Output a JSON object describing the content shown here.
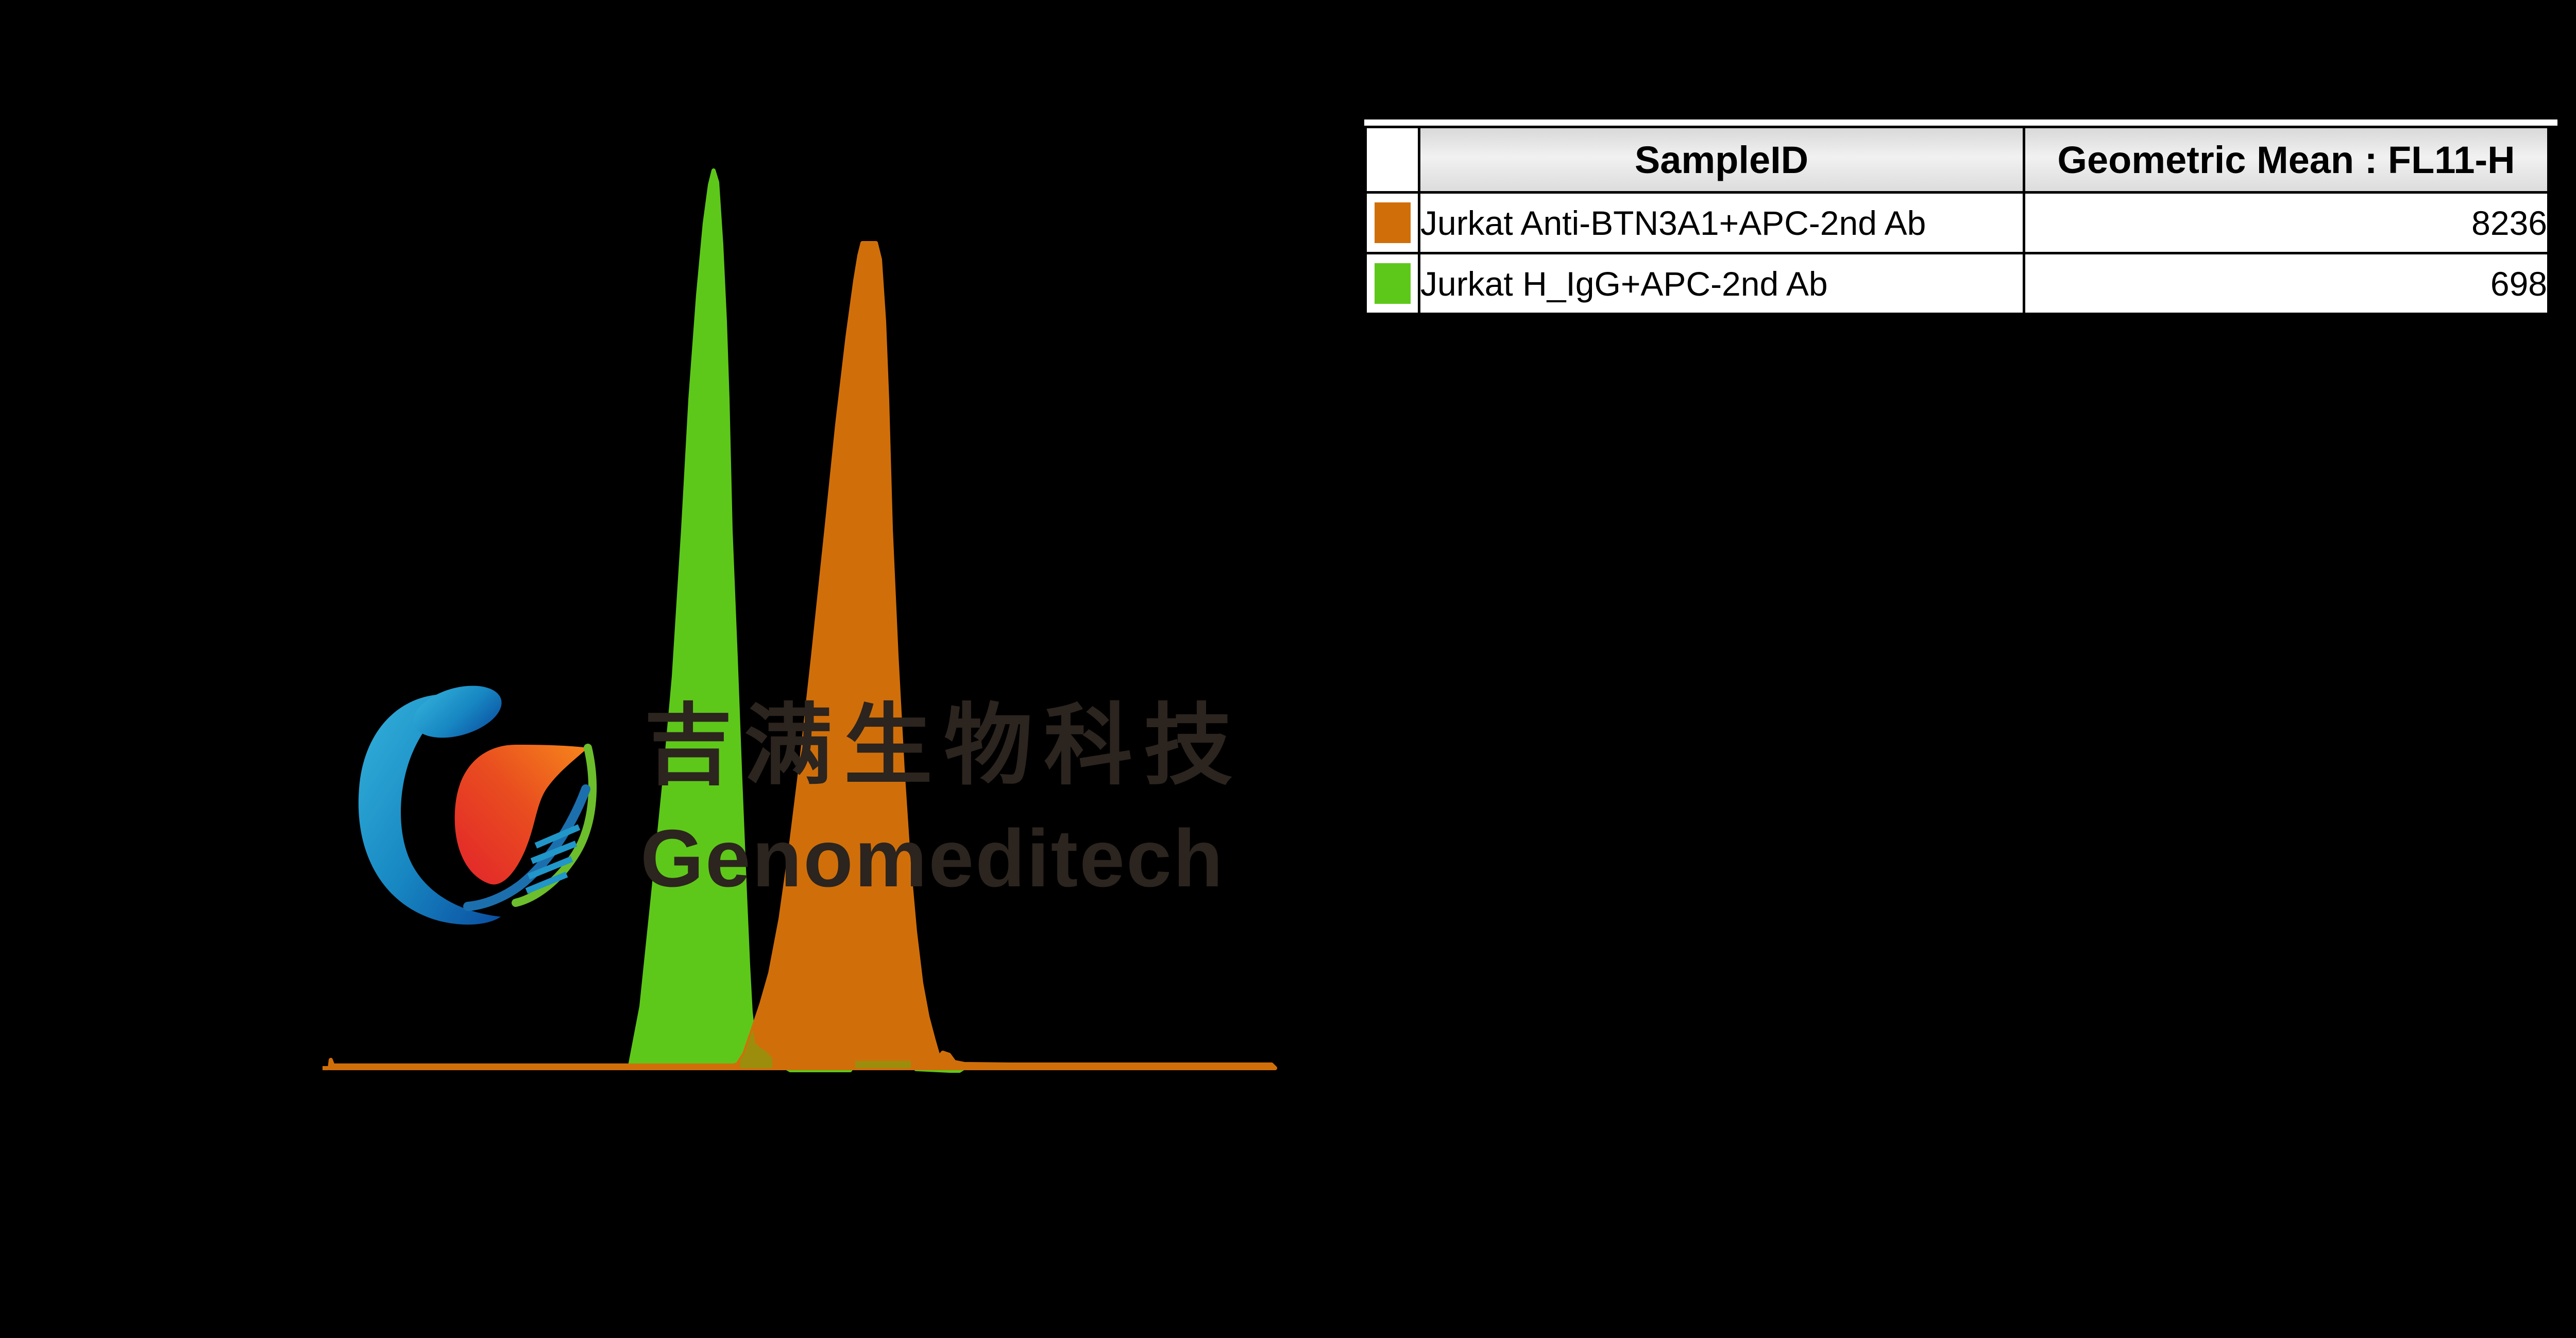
{
  "watermark": {
    "cjk_text": "吉满生物科技",
    "brand_text": "Genomeditech",
    "text_color": "#2C241E"
  },
  "legend_table": {
    "headers": {
      "swatch": "",
      "sample_id": "SampleID",
      "metric": "Geometric Mean : FL11-H"
    },
    "rows": [
      {
        "swatch_color": "#D06F0A",
        "sample_id": "Jurkat Anti-BTN3A1+APC-2nd Ab",
        "value": "8236"
      },
      {
        "swatch_color": "#5EC81A",
        "sample_id": "Jurkat H_IgG+APC-2nd Ab",
        "value": "698"
      }
    ]
  },
  "chart_data": {
    "type": "area",
    "subtype": "flow-cytometry-histogram-overlay",
    "title": "",
    "xlabel": "",
    "ylabel": "",
    "x_channel": "FL11-H",
    "axes_visible": false,
    "grid": false,
    "background_color": "#000000",
    "baseline_color": "#D06F0A",
    "overlap_color": "#9C8E0C",
    "legend_position": "top-right-table",
    "series": [
      {
        "name": "Jurkat H_IgG+APC-2nd Ab",
        "color": "#5EC81A",
        "geometric_mean_fl11h": 698,
        "points": [
          [
            0.3172,
            0
          ],
          [
            0.3297,
            0.0688
          ],
          [
            0.3422,
            0.1951
          ],
          [
            0.3542,
            0.3213
          ],
          [
            0.364,
            0.436
          ],
          [
            0.3738,
            0.5995
          ],
          [
            0.3815,
            0.7458
          ],
          [
            0.3896,
            0.8606
          ],
          [
            0.3967,
            0.9409
          ],
          [
            0.4022,
            0.9839
          ],
          [
            0.406,
            1.0
          ],
          [
            0.4098,
            0.9868
          ],
          [
            0.4141,
            0.918
          ],
          [
            0.418,
            0.8319
          ],
          [
            0.4207,
            0.7458
          ],
          [
            0.424,
            0.5995
          ],
          [
            0.4294,
            0.459
          ],
          [
            0.4343,
            0.3213
          ],
          [
            0.4392,
            0.1951
          ],
          [
            0.4425,
            0.1147
          ],
          [
            0.4452,
            0.0631
          ],
          [
            0.4474,
            0.0419
          ],
          [
            0.4501,
            0.0275
          ],
          [
            0.4556,
            0.0229
          ],
          [
            0.4616,
            0.0184
          ],
          [
            0.4681,
            0.0115
          ],
          [
            0.4741,
            0.0057
          ],
          [
            0.4796,
            0.0023
          ],
          [
            0.4872,
            -0.0023
          ],
          [
            0.5504,
            -0.0023
          ],
          [
            0.5559,
            0.008
          ],
          [
            0.6147,
            0.008
          ],
          [
            0.6202,
            -0.0011
          ],
          [
            0.6567,
            -0.0029
          ],
          [
            0.666,
            -0.0029
          ],
          [
            0.6703,
            0
          ]
        ]
      },
      {
        "name": "Jurkat Anti-BTN3A1+APC-2nd Ab",
        "color": "#D06F0A",
        "geometric_mean_fl11h": 8236,
        "points": [
          [
            0.0,
            0
          ],
          [
            0.0011,
            0.0092
          ],
          [
            0.0033,
            0.0029
          ],
          [
            0.4278,
            0.0029
          ],
          [
            0.4316,
            0.0046
          ],
          [
            0.4387,
            0.0161
          ],
          [
            0.4469,
            0.0413
          ],
          [
            0.4567,
            0.0717
          ],
          [
            0.466,
            0.1061
          ],
          [
            0.4769,
            0.1664
          ],
          [
            0.4877,
            0.2467
          ],
          [
            0.4992,
            0.3442
          ],
          [
            0.5112,
            0.459
          ],
          [
            0.5253,
            0.5995
          ],
          [
            0.5368,
            0.7171
          ],
          [
            0.5477,
            0.8146
          ],
          [
            0.5559,
            0.8777
          ],
          [
            0.5602,
            0.9053
          ],
          [
            0.5635,
            0.9191
          ],
          [
            0.5777,
            0.9191
          ],
          [
            0.582,
            0.9008
          ],
          [
            0.5864,
            0.8319
          ],
          [
            0.5896,
            0.7458
          ],
          [
            0.5935,
            0.5995
          ],
          [
            0.5995,
            0.459
          ],
          [
            0.606,
            0.3327
          ],
          [
            0.6125,
            0.2295
          ],
          [
            0.6191,
            0.152
          ],
          [
            0.6256,
            0.0947
          ],
          [
            0.6322,
            0.0574
          ],
          [
            0.6387,
            0.0316
          ],
          [
            0.6442,
            0.0115
          ],
          [
            0.6485,
            0.0172
          ],
          [
            0.655,
            0.0149
          ],
          [
            0.6605,
            0.0069
          ],
          [
            0.6714,
            0.0046
          ],
          [
            0.7193,
            0.004
          ],
          [
            0.9962,
            0.004
          ],
          [
            1.0,
            0
          ]
        ]
      }
    ]
  }
}
